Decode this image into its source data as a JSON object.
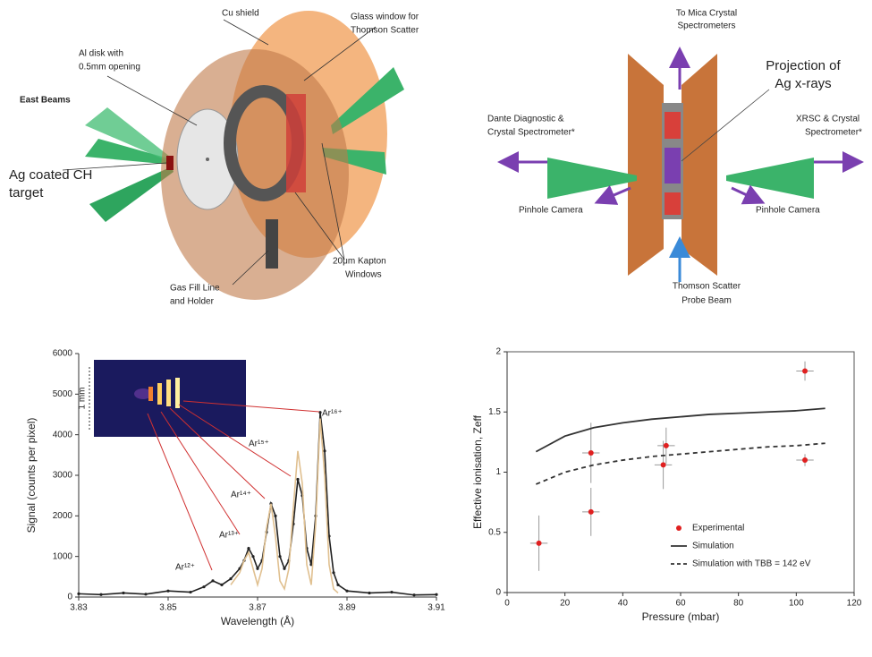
{
  "diagrams": [
    {
      "labels": [
        [
          "Cu shield"
        ],
        [
          "Glass window for",
          "Thomson Scatter"
        ],
        [
          "Al disk with",
          "0.5mm opening"
        ],
        [
          "East Beams"
        ],
        [
          "Ag coated CH",
          "target"
        ],
        [
          "Gas Fill Line",
          "and Holder"
        ],
        [
          "20μm Kapton",
          "Windows"
        ]
      ]
    },
    {
      "labels": [
        [
          "To Mica Crystal",
          "Spectrometers"
        ],
        [
          "Projection of",
          "Ag x-rays"
        ],
        [
          "Dante Diagnostic  &",
          "Crystal Spectrometer*"
        ],
        [
          "XRSC & Crystal",
          "Spectrometer*"
        ],
        [
          "Pinhole Camera"
        ],
        [
          "Pinhole Camera"
        ],
        [
          "Thomson Scatter",
          "Probe Beam"
        ]
      ]
    }
  ],
  "chart_data": [
    {
      "type": "line",
      "x_label": "Wavelength (Å)",
      "y_label": "Signal (counts per pixel)",
      "x": [
        3.83,
        3.835,
        3.84,
        3.845,
        3.85,
        3.855,
        3.858,
        3.86,
        3.862,
        3.864,
        3.866,
        3.867,
        3.868,
        3.869,
        3.87,
        3.871,
        3.872,
        3.873,
        3.874,
        3.875,
        3.876,
        3.877,
        3.878,
        3.879,
        3.88,
        3.881,
        3.882,
        3.883,
        3.884,
        3.885,
        3.886,
        3.887,
        3.888,
        3.89,
        3.895,
        3.9,
        3.905,
        3.91
      ],
      "series": [
        {
          "color": "#222222",
          "markers": true,
          "values": [
            80,
            60,
            100,
            70,
            150,
            120,
            250,
            400,
            300,
            450,
            700,
            900,
            1200,
            1000,
            700,
            900,
            1600,
            2300,
            2000,
            1000,
            700,
            900,
            1800,
            2900,
            2500,
            1200,
            800,
            2000,
            4550,
            3600,
            1500,
            600,
            300,
            150,
            100,
            120,
            50,
            60
          ]
        },
        {
          "color": "#e0c090",
          "markers": false,
          "values": [
            null,
            null,
            null,
            null,
            null,
            null,
            null,
            null,
            null,
            300,
            600,
            900,
            1100,
            700,
            300,
            700,
            1700,
            2300,
            1500,
            400,
            200,
            700,
            2200,
            3600,
            2800,
            800,
            300,
            1800,
            4400,
            3000,
            800,
            200,
            100,
            null,
            null,
            null,
            null,
            null
          ]
        }
      ],
      "xlim": [
        3.83,
        3.91
      ],
      "xticks": [
        3.83,
        3.85,
        3.87,
        3.89,
        3.91
      ],
      "ylim": [
        0,
        6000
      ],
      "yticks": [
        0,
        1000,
        2000,
        3000,
        4000,
        5000,
        6000
      ],
      "annotations": [
        "Ar¹⁶⁺",
        "Ar¹⁵⁺",
        "Ar¹⁴⁺",
        "Ar¹³⁺",
        "Ar¹²⁺"
      ],
      "inset_scale_label": "1 mm"
    },
    {
      "type": "scatter",
      "x_label": "Pressure (mbar)",
      "y_label": "Effective ionisation, Zeff",
      "series": [
        {
          "name": "Experimental",
          "type": "scatter",
          "color": "#e02020",
          "x": [
            11,
            29,
            29,
            54,
            55,
            103,
            103
          ],
          "values": [
            0.41,
            1.16,
            0.67,
            1.06,
            1.22,
            1.84,
            1.1
          ],
          "xerr": [
            3,
            3,
            3,
            3,
            3,
            3,
            3
          ],
          "yerr": [
            0.23,
            0.25,
            0.2,
            0.2,
            0.15,
            0.08,
            0.05
          ]
        },
        {
          "name": "Simulation",
          "type": "line",
          "color": "#333333",
          "dash": false,
          "x": [
            10,
            20,
            30,
            40,
            50,
            60,
            70,
            80,
            90,
            100,
            110
          ],
          "values": [
            1.17,
            1.3,
            1.37,
            1.41,
            1.44,
            1.46,
            1.48,
            1.49,
            1.5,
            1.51,
            1.53
          ]
        },
        {
          "name": "Simulation with TBB = 142 eV",
          "type": "line",
          "color": "#333333",
          "dash": true,
          "x": [
            10,
            20,
            30,
            40,
            50,
            60,
            70,
            80,
            90,
            100,
            110
          ],
          "values": [
            0.9,
            1.0,
            1.06,
            1.1,
            1.13,
            1.15,
            1.17,
            1.19,
            1.21,
            1.22,
            1.24
          ]
        }
      ],
      "xlim": [
        0,
        120
      ],
      "xticks": [
        0,
        20,
        40,
        60,
        80,
        100,
        120
      ],
      "ylim": [
        0,
        2
      ],
      "yticks": [
        0,
        0.5,
        1,
        1.5,
        2
      ],
      "legend": "lower right"
    }
  ]
}
